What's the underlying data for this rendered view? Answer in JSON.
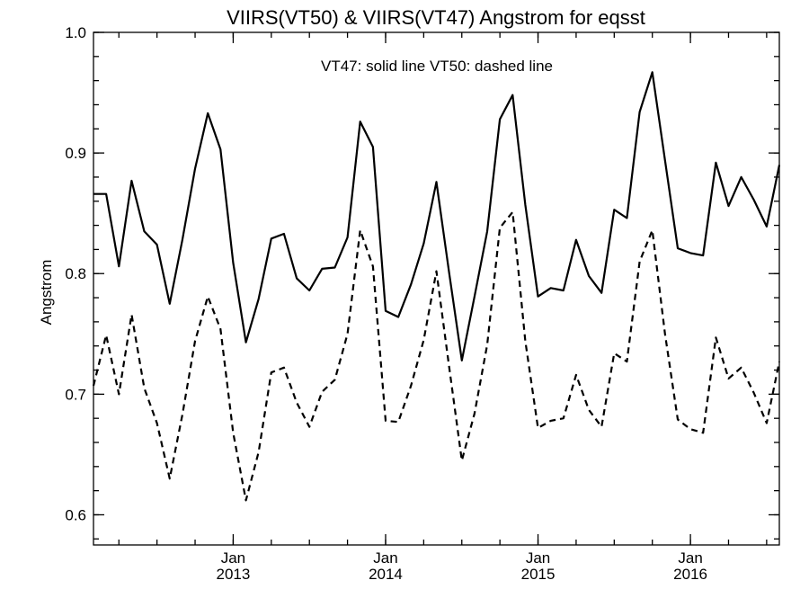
{
  "chart_data": {
    "type": "line",
    "title": "VIIRS(VT50) & VIIRS(VT47)  Angstrom for eqsst",
    "annotation": "VT47: solid line   VT50: dashed line",
    "xlabel": "",
    "ylabel": "Angstrom",
    "ylim": [
      0.575,
      1.0
    ],
    "yticks": [
      0.6,
      0.7,
      0.8,
      0.9,
      1.0
    ],
    "ytick_labels": [
      "0.6",
      "0.7",
      "0.8",
      "0.9",
      "1.0"
    ],
    "xlim": [
      "2012-02",
      "2016-08"
    ],
    "xticks": [
      {
        "x": "2013-01",
        "month": "Jan",
        "year": "2013"
      },
      {
        "x": "2014-01",
        "month": "Jan",
        "year": "2014"
      },
      {
        "x": "2015-01",
        "month": "Jan",
        "year": "2015"
      },
      {
        "x": "2016-01",
        "month": "Jan",
        "year": "2016"
      }
    ],
    "x": [
      "2012-02",
      "2012-03",
      "2012-04",
      "2012-05",
      "2012-06",
      "2012-07",
      "2012-08",
      "2012-09",
      "2012-10",
      "2012-11",
      "2012-12",
      "2013-01",
      "2013-02",
      "2013-03",
      "2013-04",
      "2013-05",
      "2013-06",
      "2013-07",
      "2013-08",
      "2013-09",
      "2013-10",
      "2013-11",
      "2013-12",
      "2014-01",
      "2014-02",
      "2014-03",
      "2014-04",
      "2014-05",
      "2014-06",
      "2014-07",
      "2014-08",
      "2014-09",
      "2014-10",
      "2014-11",
      "2014-12",
      "2015-01",
      "2015-02",
      "2015-03",
      "2015-04",
      "2015-05",
      "2015-06",
      "2015-07",
      "2015-08",
      "2015-09",
      "2015-10",
      "2015-11",
      "2015-12",
      "2016-01",
      "2016-02",
      "2016-03",
      "2016-04",
      "2016-05",
      "2016-06",
      "2016-07",
      "2016-08"
    ],
    "series": [
      {
        "name": "VT47",
        "style": "solid",
        "values": [
          0.866,
          0.866,
          0.806,
          0.877,
          0.835,
          0.824,
          0.775,
          0.828,
          0.887,
          0.933,
          0.903,
          0.809,
          0.743,
          0.779,
          0.829,
          0.833,
          0.796,
          0.786,
          0.804,
          0.805,
          0.83,
          0.926,
          0.905,
          0.769,
          0.764,
          0.791,
          0.825,
          0.876,
          0.801,
          0.728,
          0.781,
          0.835,
          0.928,
          0.948,
          0.857,
          0.781,
          0.788,
          0.786,
          0.828,
          0.798,
          0.784,
          0.853,
          0.846,
          0.934,
          0.967,
          0.894,
          0.821,
          0.817,
          0.815,
          0.892,
          0.856,
          0.88,
          0.861,
          0.839,
          0.89
        ]
      },
      {
        "name": "VT50",
        "style": "dashed",
        "values": [
          0.707,
          0.749,
          0.7,
          0.766,
          0.705,
          0.676,
          0.63,
          0.683,
          0.744,
          0.781,
          0.754,
          0.668,
          0.612,
          0.652,
          0.718,
          0.722,
          0.693,
          0.673,
          0.702,
          0.712,
          0.75,
          0.836,
          0.806,
          0.678,
          0.677,
          0.707,
          0.745,
          0.802,
          0.723,
          0.645,
          0.684,
          0.741,
          0.838,
          0.851,
          0.744,
          0.672,
          0.678,
          0.68,
          0.716,
          0.687,
          0.673,
          0.734,
          0.727,
          0.81,
          0.836,
          0.75,
          0.679,
          0.671,
          0.668,
          0.747,
          0.713,
          0.722,
          0.701,
          0.676,
          0.727
        ]
      }
    ],
    "grid": false,
    "legend": "none"
  }
}
